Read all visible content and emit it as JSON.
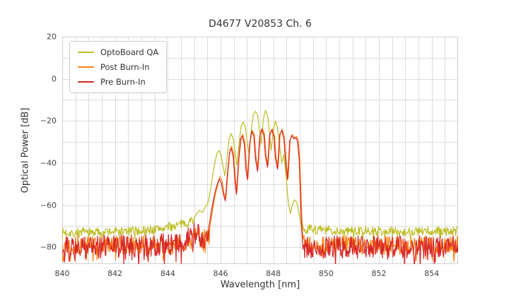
{
  "chart_data": {
    "type": "line",
    "title": "D4677 V20853 Ch. 6",
    "xlabel": "Wavelength [nm]",
    "ylabel": "Optical Power [dB]",
    "xlim": [
      840,
      855
    ],
    "ylim": [
      -88,
      20
    ],
    "grid": true,
    "grid_color": "#dcdcdc",
    "spine_color": "#d0d0d0",
    "x_grid_step": 0.5,
    "y_grid_step": 10,
    "legend_position": "upper left",
    "x_ticks": {
      "values": [
        840,
        842,
        844,
        846,
        848,
        850,
        852,
        854
      ],
      "labels": [
        "840",
        "842",
        "844",
        "846",
        "848",
        "850",
        "852",
        "854"
      ]
    },
    "y_ticks": {
      "values": [
        20,
        0,
        -20,
        -40,
        -60,
        -80
      ],
      "labels": [
        "20",
        "0",
        "−20",
        "−40",
        "−60",
        "−80"
      ]
    },
    "series": [
      {
        "name": "OptoBoard QA",
        "color": "#bcbd22",
        "seed": 7,
        "noise_step": 0.022,
        "segments": [
          {
            "type": "noise",
            "x0": 840,
            "x1": 845.0,
            "amp": 2.2,
            "anchors": [
              [
                840,
                -73
              ],
              [
                842.5,
                -72.5
              ],
              [
                843.5,
                -71.5
              ],
              [
                844.2,
                -70
              ],
              [
                844.7,
                -68.5
              ],
              [
                845.0,
                -66.5
              ]
            ]
          },
          {
            "type": "points",
            "points": [
              [
                845.0,
                -66
              ],
              [
                845.1,
                -64
              ],
              [
                845.2,
                -62.5
              ],
              [
                845.32,
                -63.5
              ],
              [
                845.42,
                -61
              ],
              [
                845.52,
                -59
              ],
              [
                845.6,
                -54
              ],
              [
                845.7,
                -46
              ],
              [
                845.78,
                -40
              ],
              [
                845.86,
                -35.5
              ],
              [
                845.94,
                -34
              ],
              [
                846.02,
                -36.5
              ],
              [
                846.1,
                -42
              ],
              [
                846.16,
                -46
              ],
              [
                846.24,
                -38
              ],
              [
                846.32,
                -29
              ],
              [
                846.4,
                -26
              ],
              [
                846.48,
                -28.5
              ],
              [
                846.56,
                -36
              ],
              [
                846.62,
                -41
              ],
              [
                846.7,
                -31
              ],
              [
                846.78,
                -22.5
              ],
              [
                846.86,
                -20.5
              ],
              [
                846.94,
                -23
              ],
              [
                847.02,
                -31
              ],
              [
                847.08,
                -36
              ],
              [
                847.16,
                -25
              ],
              [
                847.24,
                -17
              ],
              [
                847.32,
                -15.5
              ],
              [
                847.4,
                -17
              ],
              [
                847.48,
                -25
              ],
              [
                847.54,
                -31
              ],
              [
                847.62,
                -19
              ],
              [
                847.7,
                -15
              ],
              [
                847.78,
                -17.5
              ],
              [
                847.86,
                -27
              ],
              [
                847.92,
                -34
              ],
              [
                848.0,
                -24
              ],
              [
                848.08,
                -20
              ],
              [
                848.16,
                -23.5
              ],
              [
                848.24,
                -32
              ],
              [
                848.32,
                -40
              ],
              [
                848.4,
                -36
              ],
              [
                848.48,
                -46
              ],
              [
                848.56,
                -58
              ],
              [
                848.64,
                -64
              ],
              [
                848.72,
                -60
              ],
              [
                848.8,
                -57.5
              ],
              [
                848.88,
                -58.5
              ],
              [
                848.96,
                -63
              ],
              [
                849.02,
                -67
              ],
              [
                849.06,
                -70
              ]
            ]
          },
          {
            "type": "noise",
            "x0": 849.08,
            "x1": 855,
            "amp": 2.2,
            "anchors": [
              [
                849.08,
                -71
              ],
              [
                850,
                -72
              ],
              [
                852,
                -72.5
              ],
              [
                855,
                -72.5
              ]
            ]
          }
        ]
      },
      {
        "name": "Post Burn-In",
        "color": "#ff7f0e",
        "seed": 13,
        "noise_step": 0.022,
        "segments": [
          {
            "type": "noise",
            "x0": 840,
            "x1": 845.6,
            "amp": 4.5,
            "anchors": [
              [
                840,
                -79
              ],
              [
                843,
                -79
              ],
              [
                844.5,
                -78
              ],
              [
                844.95,
                -76
              ],
              [
                845.1,
                -73.5
              ],
              [
                845.3,
                -76.5
              ],
              [
                845.6,
                -74
              ]
            ]
          },
          {
            "type": "points",
            "points": [
              [
                845.6,
                -70
              ],
              [
                845.7,
                -62
              ],
              [
                845.8,
                -55
              ],
              [
                845.9,
                -50
              ],
              [
                845.98,
                -46.5
              ],
              [
                846.06,
                -48.5
              ],
              [
                846.12,
                -54
              ],
              [
                846.2,
                -57
              ],
              [
                846.28,
                -44
              ],
              [
                846.36,
                -34
              ],
              [
                846.42,
                -32
              ],
              [
                846.5,
                -36
              ],
              [
                846.56,
                -47
              ],
              [
                846.62,
                -54
              ],
              [
                846.7,
                -38
              ],
              [
                846.78,
                -28
              ],
              [
                846.84,
                -26.5
              ],
              [
                846.92,
                -30
              ],
              [
                846.98,
                -42
              ],
              [
                847.04,
                -47
              ],
              [
                847.12,
                -30
              ],
              [
                847.2,
                -24.5
              ],
              [
                847.28,
                -26.5
              ],
              [
                847.34,
                -37
              ],
              [
                847.42,
                -43
              ],
              [
                847.5,
                -27
              ],
              [
                847.58,
                -23.5
              ],
              [
                847.66,
                -26
              ],
              [
                847.72,
                -36
              ],
              [
                847.8,
                -41
              ],
              [
                847.88,
                -26
              ],
              [
                847.96,
                -23.8
              ],
              [
                848.04,
                -27
              ],
              [
                848.1,
                -37
              ],
              [
                848.18,
                -42
              ],
              [
                848.26,
                -26
              ],
              [
                848.34,
                -24
              ],
              [
                848.42,
                -28
              ],
              [
                848.5,
                -41
              ],
              [
                848.56,
                -47
              ],
              [
                848.64,
                -29
              ],
              [
                848.72,
                -26.5
              ],
              [
                848.8,
                -28
              ],
              [
                848.88,
                -27.5
              ],
              [
                848.94,
                -29
              ],
              [
                849.0,
                -38
              ],
              [
                849.04,
                -52
              ],
              [
                849.08,
                -66
              ],
              [
                849.12,
                -76
              ]
            ]
          },
          {
            "type": "noise",
            "x0": 849.14,
            "x1": 855,
            "amp": 4.5,
            "anchors": [
              [
                849.14,
                -78.5
              ],
              [
                851,
                -79
              ],
              [
                855,
                -79
              ]
            ]
          }
        ]
      },
      {
        "name": "Pre Burn-In",
        "color": "#d62728",
        "seed": 29,
        "noise_step": 0.022,
        "segments": [
          {
            "type": "noise",
            "x0": 840,
            "x1": 845.55,
            "amp": 5.5,
            "anchors": [
              [
                840,
                -80
              ],
              [
                843,
                -79.5
              ],
              [
                844.5,
                -78.5
              ],
              [
                844.95,
                -74.5
              ],
              [
                845.1,
                -72
              ],
              [
                845.25,
                -76
              ],
              [
                845.55,
                -75
              ]
            ]
          },
          {
            "type": "points",
            "points": [
              [
                845.55,
                -71
              ],
              [
                845.65,
                -63
              ],
              [
                845.75,
                -56
              ],
              [
                845.85,
                -51
              ],
              [
                845.95,
                -47.5
              ],
              [
                846.03,
                -49.5
              ],
              [
                846.11,
                -55
              ],
              [
                846.18,
                -58
              ],
              [
                846.26,
                -45
              ],
              [
                846.34,
                -35
              ],
              [
                846.4,
                -33
              ],
              [
                846.48,
                -37
              ],
              [
                846.54,
                -48
              ],
              [
                846.6,
                -55
              ],
              [
                846.68,
                -39
              ],
              [
                846.76,
                -28.5
              ],
              [
                846.82,
                -27
              ],
              [
                846.9,
                -31
              ],
              [
                846.96,
                -43
              ],
              [
                847.02,
                -48
              ],
              [
                847.1,
                -31
              ],
              [
                847.18,
                -25
              ],
              [
                847.26,
                -27
              ],
              [
                847.32,
                -38
              ],
              [
                847.4,
                -44
              ],
              [
                847.48,
                -27.5
              ],
              [
                847.56,
                -24
              ],
              [
                847.64,
                -26.5
              ],
              [
                847.7,
                -37
              ],
              [
                847.78,
                -42
              ],
              [
                847.86,
                -26.5
              ],
              [
                847.94,
                -24.2
              ],
              [
                848.02,
                -27.5
              ],
              [
                848.08,
                -38
              ],
              [
                848.16,
                -43
              ],
              [
                848.24,
                -26.5
              ],
              [
                848.32,
                -24.5
              ],
              [
                848.4,
                -28.5
              ],
              [
                848.48,
                -42
              ],
              [
                848.54,
                -48
              ],
              [
                848.62,
                -29.5
              ],
              [
                848.7,
                -27
              ],
              [
                848.78,
                -28.5
              ],
              [
                848.86,
                -28
              ],
              [
                848.92,
                -30
              ],
              [
                848.98,
                -39
              ],
              [
                849.02,
                -53
              ],
              [
                849.06,
                -67
              ],
              [
                849.1,
                -77
              ]
            ]
          },
          {
            "type": "noise",
            "x0": 849.12,
            "x1": 855,
            "amp": 5.5,
            "anchors": [
              [
                849.12,
                -80
              ],
              [
                851,
                -80
              ],
              [
                855,
                -80
              ]
            ]
          }
        ]
      }
    ]
  }
}
